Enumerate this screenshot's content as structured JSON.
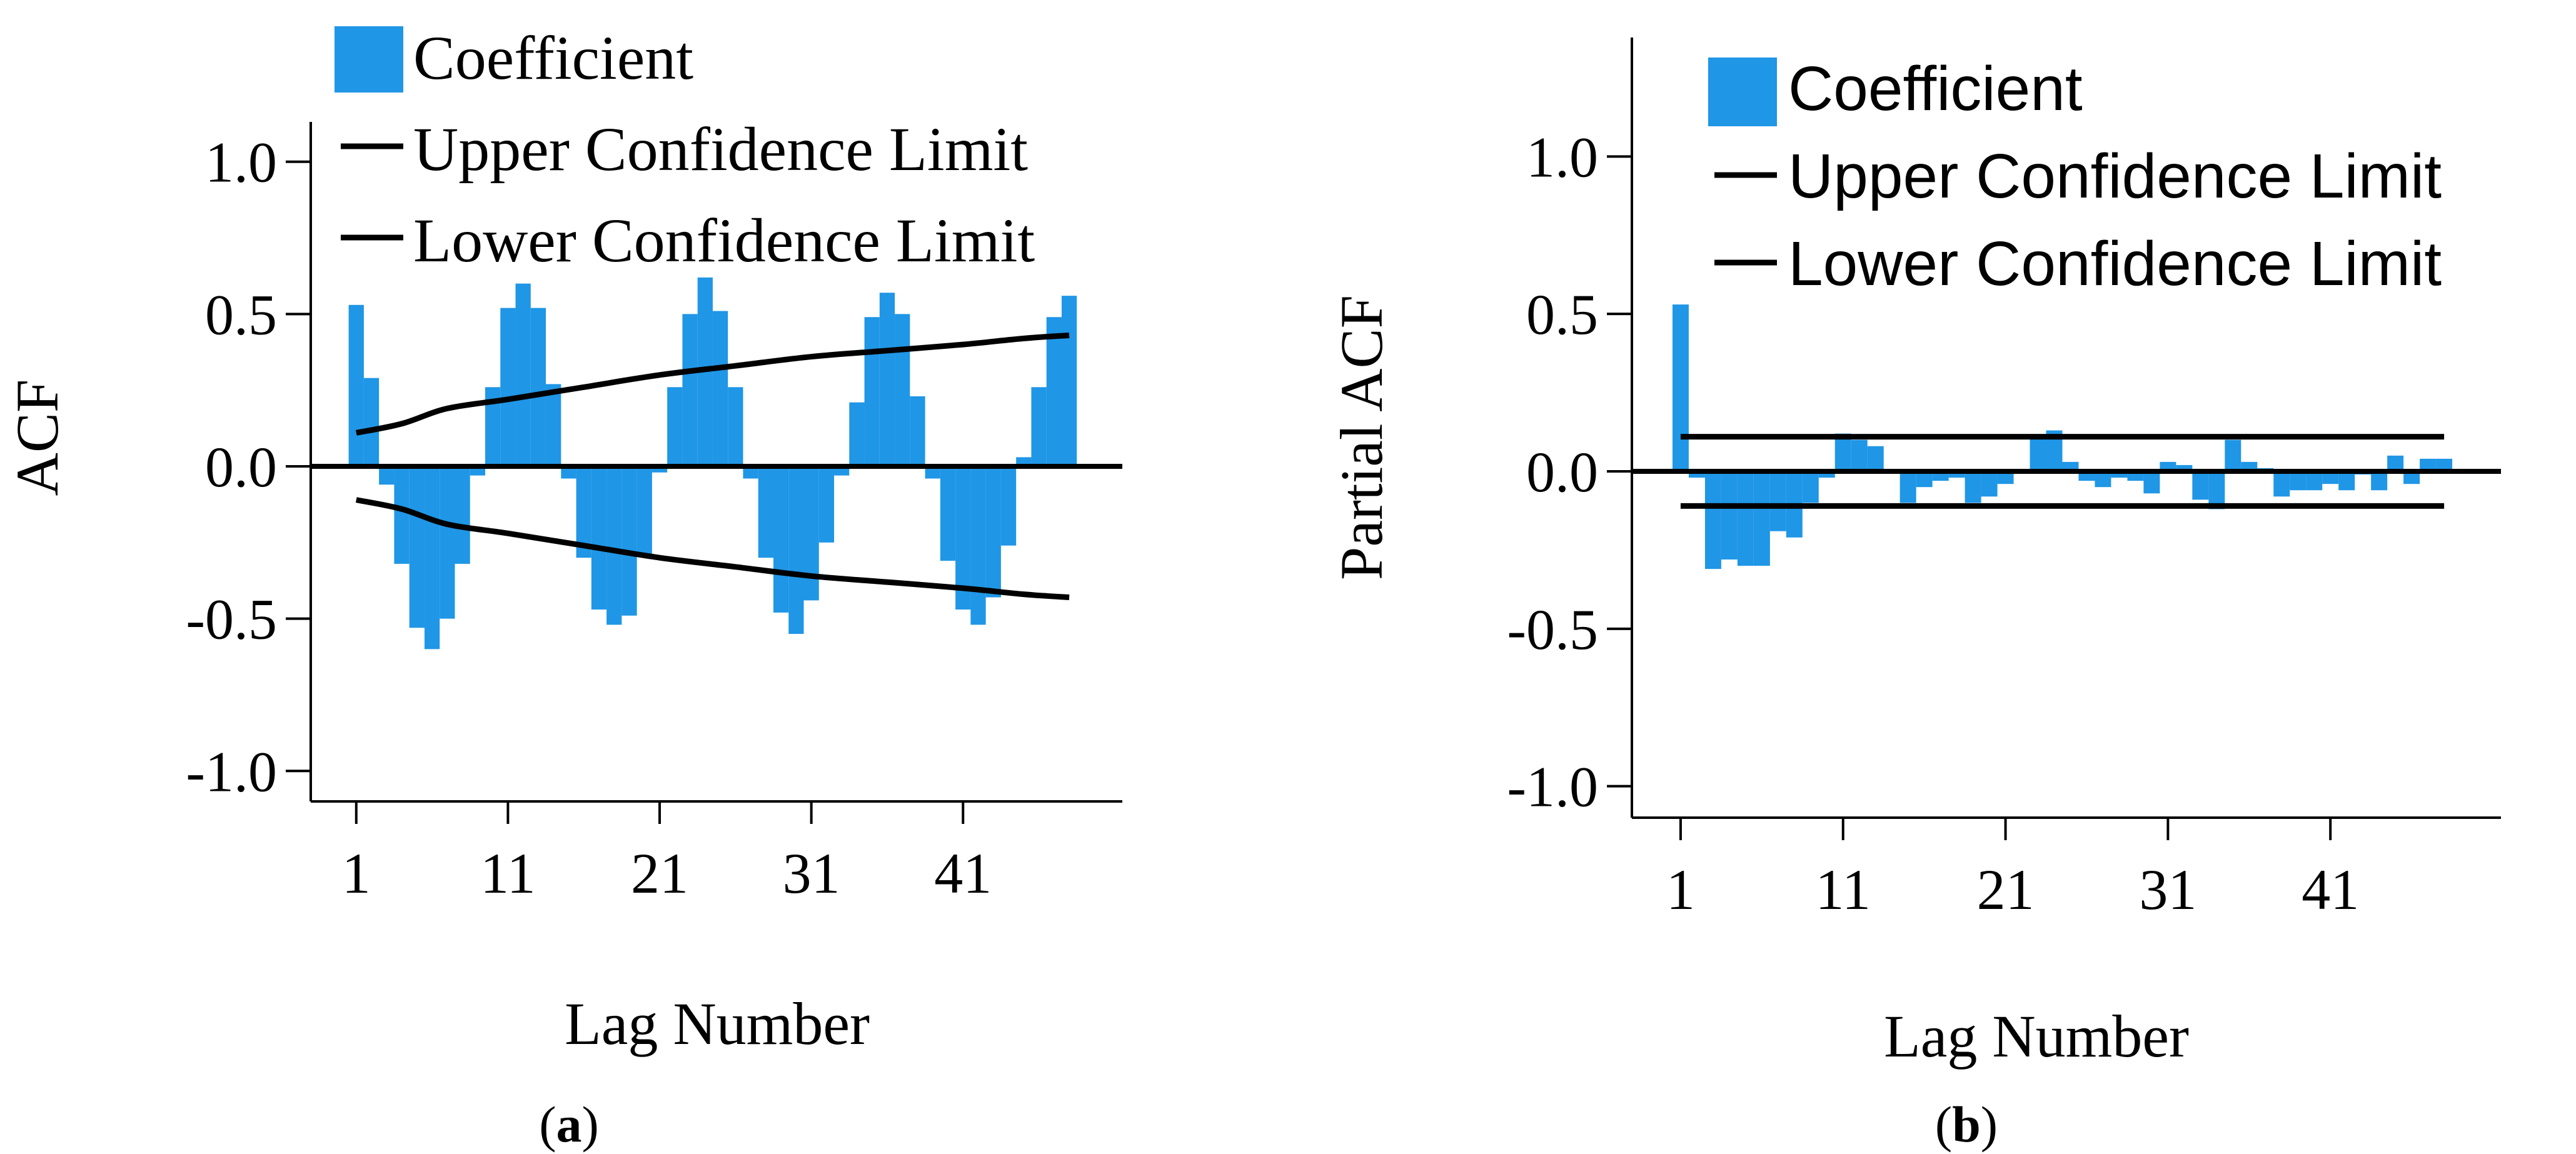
{
  "colors": {
    "bar": "#1f96e6",
    "line": "#000000",
    "axis": "#000000"
  },
  "chart_data": [
    {
      "type": "bar",
      "panel_label": "(a)",
      "title": "",
      "xlabel": "Lag Number",
      "ylabel": "ACF",
      "ylim": [
        -1.1,
        1.1
      ],
      "xlim": [
        -2,
        51.5
      ],
      "yticks": [
        1.0,
        0.5,
        0.0,
        -0.5,
        -1.0
      ],
      "ytick_labels": [
        "1.0",
        "0.5",
        "0.0",
        "-0.5",
        "-1.0"
      ],
      "xticks": [
        1,
        11,
        21,
        31,
        41
      ],
      "xtick_labels": [
        "1",
        "11",
        "21",
        "31",
        "41"
      ],
      "grid": false,
      "legend_position": "top-left",
      "series": [
        {
          "name": "Coefficient",
          "kind": "bar",
          "x": [
            1,
            2,
            3,
            4,
            5,
            6,
            7,
            8,
            9,
            10,
            11,
            12,
            13,
            14,
            15,
            16,
            17,
            18,
            19,
            20,
            21,
            22,
            23,
            24,
            25,
            26,
            27,
            28,
            29,
            30,
            31,
            32,
            33,
            34,
            35,
            36,
            37,
            38,
            39,
            40,
            41,
            42,
            43,
            44,
            45,
            46,
            47,
            48
          ],
          "values": [
            0.53,
            0.29,
            -0.06,
            -0.32,
            -0.53,
            -0.6,
            -0.5,
            -0.32,
            -0.03,
            0.26,
            0.52,
            0.6,
            0.52,
            0.27,
            -0.04,
            -0.3,
            -0.47,
            -0.52,
            -0.49,
            -0.29,
            -0.02,
            0.26,
            0.5,
            0.62,
            0.51,
            0.26,
            -0.04,
            -0.3,
            -0.48,
            -0.55,
            -0.44,
            -0.25,
            -0.03,
            0.21,
            0.49,
            0.57,
            0.5,
            0.23,
            -0.04,
            -0.31,
            -0.47,
            -0.52,
            -0.43,
            -0.26,
            0.03,
            0.26,
            0.49,
            0.56
          ]
        },
        {
          "name": "Upper Confidence Limit",
          "kind": "line",
          "x": [
            1,
            4,
            7,
            11,
            16,
            21,
            26,
            31,
            36,
            41,
            45,
            48
          ],
          "values": [
            0.11,
            0.14,
            0.19,
            0.22,
            0.26,
            0.3,
            0.33,
            0.36,
            0.38,
            0.4,
            0.42,
            0.43
          ]
        },
        {
          "name": "Lower Confidence Limit",
          "kind": "line",
          "x": [
            1,
            4,
            7,
            11,
            16,
            21,
            26,
            31,
            36,
            41,
            45,
            48
          ],
          "values": [
            -0.11,
            -0.14,
            -0.19,
            -0.22,
            -0.26,
            -0.3,
            -0.33,
            -0.36,
            -0.38,
            -0.4,
            -0.42,
            -0.43
          ]
        }
      ]
    },
    {
      "type": "bar",
      "panel_label": "(b)",
      "title": "",
      "xlabel": "Lag Number",
      "ylabel": "Partial ACF",
      "ylim": [
        -1.1,
        1.1
      ],
      "xlim": [
        -2,
        51.5
      ],
      "yticks": [
        1.0,
        0.5,
        0.0,
        -0.5,
        -1.0
      ],
      "ytick_labels": [
        "1.0",
        "0.5",
        "0.0",
        "-0.5",
        "-1.0"
      ],
      "xticks": [
        1,
        11,
        21,
        31,
        41
      ],
      "xtick_labels": [
        "1",
        "11",
        "21",
        "31",
        "41"
      ],
      "grid": false,
      "legend_position": "top-right",
      "series": [
        {
          "name": "Coefficient",
          "kind": "bar",
          "x": [
            1,
            2,
            3,
            4,
            5,
            6,
            7,
            8,
            9,
            10,
            11,
            12,
            13,
            14,
            15,
            16,
            17,
            18,
            19,
            20,
            21,
            22,
            23,
            24,
            25,
            26,
            27,
            28,
            29,
            30,
            31,
            32,
            33,
            34,
            35,
            36,
            37,
            38,
            39,
            40,
            41,
            42,
            43,
            44,
            45,
            46,
            47,
            48
          ],
          "values": [
            0.53,
            -0.02,
            -0.31,
            -0.28,
            -0.3,
            -0.3,
            -0.19,
            -0.21,
            -0.1,
            -0.02,
            0.12,
            0.1,
            0.08,
            0.0,
            -0.1,
            -0.05,
            -0.03,
            -0.02,
            -0.1,
            -0.08,
            -0.04,
            0.0,
            0.11,
            0.13,
            0.03,
            -0.03,
            -0.05,
            -0.02,
            -0.03,
            -0.07,
            0.03,
            0.02,
            -0.09,
            -0.12,
            0.1,
            0.03,
            0.01,
            -0.08,
            -0.06,
            -0.06,
            -0.04,
            -0.06,
            -0.01,
            -0.06,
            0.05,
            -0.04,
            0.04,
            0.04
          ]
        },
        {
          "name": "Upper Confidence Limit",
          "kind": "line",
          "x": [
            1,
            48
          ],
          "values": [
            0.11,
            0.11
          ]
        },
        {
          "name": "Lower Confidence Limit",
          "kind": "line",
          "x": [
            1,
            48
          ],
          "values": [
            -0.11,
            -0.11
          ]
        }
      ]
    }
  ]
}
